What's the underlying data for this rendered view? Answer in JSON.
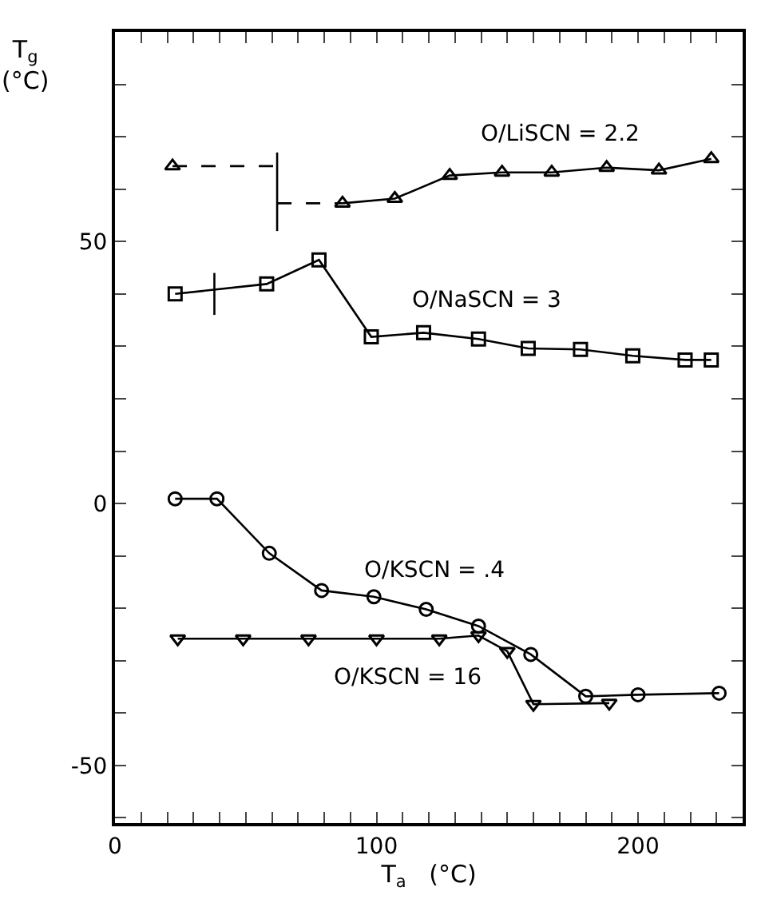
{
  "chart_data": {
    "type": "line",
    "xlabel": "T$_{a}$   (°C)",
    "ylabel": "T$_{g}$\n(°C)",
    "xlim": [
      0,
      240
    ],
    "ylim": [
      -61,
      90
    ],
    "xticks": [
      0,
      {
        "value": 10,
        "label": null
      },
      {
        "value": 20,
        "label": null
      },
      {
        "value": 30,
        "label": null
      },
      {
        "value": 40,
        "label": null
      },
      {
        "value": 50,
        "label": null
      },
      {
        "value": 60,
        "label": null
      },
      {
        "value": 70,
        "label": null
      },
      {
        "value": 80,
        "label": null
      },
      {
        "value": 90,
        "label": null
      },
      100,
      {
        "value": 110,
        "label": null
      },
      {
        "value": 120,
        "label": null
      },
      {
        "value": 130,
        "label": null
      },
      {
        "value": 140,
        "label": null
      },
      {
        "value": 150,
        "label": null
      },
      {
        "value": 160,
        "label": null
      },
      {
        "value": 170,
        "label": null
      },
      {
        "value": 180,
        "label": null
      },
      {
        "value": 190,
        "label": null
      },
      200,
      {
        "value": 210,
        "label": null
      },
      {
        "value": 220,
        "label": null
      },
      {
        "value": 230,
        "label": null
      }
    ],
    "yticks": [
      {
        "value": -60,
        "label": null
      },
      -50,
      {
        "value": -40,
        "label": null
      },
      {
        "value": -30,
        "label": null
      },
      {
        "value": -20,
        "label": null
      },
      {
        "value": -10,
        "label": null
      },
      0,
      {
        "value": 10,
        "label": null
      },
      {
        "value": 20,
        "label": null
      },
      {
        "value": 30,
        "label": null
      },
      {
        "value": 40,
        "label": null
      },
      50,
      {
        "value": 60,
        "label": null
      },
      {
        "value": 70,
        "label": null
      },
      {
        "value": 80,
        "label": null
      }
    ],
    "legend": false,
    "series": [
      {
        "name": "O/LiSCN = 2.2",
        "color": "#000000",
        "marker": "triangle",
        "line_style": "solid",
        "x": [
          87,
          107,
          128,
          148,
          167,
          188,
          208,
          228
        ],
        "values": [
          57.3,
          58.2,
          62.6,
          63.2,
          63.2,
          64.1,
          63.6,
          65.8
        ]
      },
      {
        "type": "scatter",
        "color": "#000000",
        "marker": "triangle",
        "x": [
          22
        ],
        "values": [
          64.4
        ]
      },
      {
        "color": "#000000",
        "marker": "none",
        "line_style": "dashed",
        "x": [
          22,
          62
        ],
        "values": [
          64.4,
          64.4
        ]
      },
      {
        "color": "#000000",
        "marker": "none",
        "line_style": "dashed",
        "x": [
          62,
          87
        ],
        "values": [
          57.3,
          57.3
        ]
      },
      {
        "color": "#000000",
        "marker": "none",
        "line_style": "solid",
        "x": [
          62,
          62
        ],
        "values": [
          52,
          67
        ]
      },
      {
        "name": "O/NaSCN = 3",
        "color": "#000000",
        "marker": "square",
        "line_style": "solid",
        "x": [
          23,
          58,
          78,
          98,
          118,
          139,
          158,
          178,
          198,
          218,
          228
        ],
        "values": [
          40,
          41.9,
          46.5,
          31.8,
          32.6,
          31.4,
          29.6,
          29.4,
          28.2,
          27.4,
          27.4
        ]
      },
      {
        "color": "#000000",
        "marker": "none",
        "line_style": "solid",
        "x": [
          38,
          38
        ],
        "values": [
          36,
          44
        ]
      },
      {
        "name": "O/KSCN = .4",
        "color": "#000000",
        "marker": "circle",
        "line_style": "solid",
        "x": [
          23,
          39,
          59,
          79,
          99,
          119,
          139,
          159,
          180,
          200,
          231
        ],
        "values": [
          0.9,
          0.9,
          -9.5,
          -16.6,
          -17.8,
          -20.2,
          -23.4,
          -28.8,
          -36.8,
          -36.5,
          -36.2
        ]
      },
      {
        "name": "O/KSCN = 16",
        "color": "#000000",
        "marker": "triangle-down",
        "line_style": "solid",
        "x": [
          24,
          49,
          74,
          100,
          124,
          139,
          150,
          160,
          189
        ],
        "values": [
          -25.8,
          -25.8,
          -25.8,
          -25.8,
          -25.8,
          -25.2,
          -28.2,
          -38.3,
          -38.1
        ]
      }
    ]
  }
}
